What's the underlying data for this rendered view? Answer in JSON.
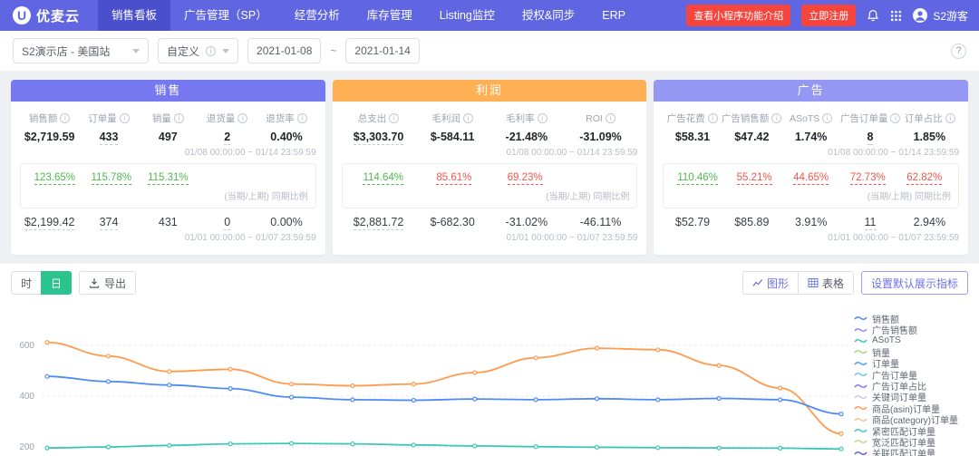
{
  "colors": {
    "topbar": "#6066e2",
    "topbar_active": "#4a50cb",
    "cta_red": "#f5453d",
    "up_green": "#4eb94c",
    "down_red": "#f25549",
    "granularity_active": "#2cc48e",
    "accent_purple": "#6a71e8"
  },
  "header": {
    "logo_text": "优麦云",
    "logo_badge": "U",
    "nav_items": [
      {
        "label": "销售看板",
        "active": true
      },
      {
        "label": "广告管理（SP）",
        "active": false
      },
      {
        "label": "经营分析",
        "active": false
      },
      {
        "label": "库存管理",
        "active": false
      },
      {
        "label": "Listing监控",
        "active": false
      },
      {
        "label": "授权&同步",
        "active": false
      },
      {
        "label": "ERP",
        "active": false
      }
    ],
    "cta_intro": "查看小程序功能介绍",
    "cta_register": "立即注册",
    "user_name": "S2游客"
  },
  "filter_bar": {
    "store": "S2演示店 - 美国站",
    "range_type": "自定义",
    "date_start": "2021-01-08",
    "date_separator": "~",
    "date_end": "2021-01-14",
    "help": "?"
  },
  "cards": [
    {
      "title": "销售",
      "accent": "#7678ef",
      "columns": [
        "销售额",
        "订单量",
        "销量",
        "退货量",
        "退货率"
      ],
      "current_values": [
        "$2,719.59",
        "433",
        "497",
        "2",
        "0.40%"
      ],
      "current_underline": [
        false,
        true,
        false,
        true,
        false
      ],
      "current_range": "01/08 00:00:00 ~ 01/14 23:59:59",
      "ratios": [
        "123.65%",
        "115.78%",
        "115.31%",
        "",
        ""
      ],
      "ratio_trends": [
        "up",
        "up",
        "up",
        "",
        ""
      ],
      "ratio_caption": "(当期/上期) 同期比例",
      "previous_values": [
        "$2,199.42",
        "374",
        "431",
        "0",
        "0.00%"
      ],
      "previous_underline": [
        true,
        true,
        false,
        true,
        false
      ],
      "previous_range": "01/01 00:00:00 ~ 01/07 23:59:59"
    },
    {
      "title": "利润",
      "accent": "#ffb055",
      "columns": [
        "总支出",
        "毛利润",
        "毛利率",
        "ROI"
      ],
      "current_values": [
        "$3,303.70",
        "$-584.11",
        "-21.48%",
        "-31.09%"
      ],
      "current_underline": [
        true,
        false,
        false,
        false
      ],
      "current_range": "01/08 00:00:00 ~ 01/14 23:59:59",
      "ratios": [
        "114.64%",
        "85.61%",
        "69.23%",
        ""
      ],
      "ratio_trends": [
        "up",
        "down",
        "down",
        ""
      ],
      "ratio_caption": "(当期/上期) 同期比例",
      "previous_values": [
        "$2,881.72",
        "$-682.30",
        "-31.02%",
        "-46.11%"
      ],
      "previous_underline": [
        true,
        false,
        false,
        false
      ],
      "previous_range": "01/01 00:00:00 ~ 01/07 23:59:59"
    },
    {
      "title": "广告",
      "accent": "#9598f3",
      "columns": [
        "广告花费",
        "广告销售额",
        "ASoTS",
        "广告订单量",
        "订单占比"
      ],
      "current_values": [
        "$58.31",
        "$47.42",
        "1.74%",
        "8",
        "1.85%"
      ],
      "current_underline": [
        false,
        false,
        false,
        true,
        false
      ],
      "current_range": "01/08 00:00:00 ~ 01/14 23:59:59",
      "ratios": [
        "110.46%",
        "55.21%",
        "44.65%",
        "72.73%",
        "62.82%"
      ],
      "ratio_trends": [
        "up",
        "down",
        "down",
        "down",
        "down"
      ],
      "ratio_caption": "(当期/上期) 同期比例",
      "previous_values": [
        "$52.79",
        "$85.89",
        "3.91%",
        "11",
        "2.94%"
      ],
      "previous_underline": [
        false,
        false,
        false,
        true,
        false
      ],
      "previous_range": "01/01 00:00:00 ~ 01/07 23:59:59"
    }
  ],
  "toolbar": {
    "granularity": [
      {
        "label": "时",
        "active": false
      },
      {
        "label": "日",
        "active": true
      }
    ],
    "export_label": "导出",
    "chart_view_label": "图形",
    "table_view_label": "表格",
    "set_metrics_label": "设置默认展示指标"
  },
  "chart_data": {
    "type": "line",
    "title": "",
    "y_ticks": [
      200,
      400,
      600
    ],
    "x_count": 14,
    "grid": true,
    "legend_position": "right",
    "series": [
      {
        "name": "商品(asin)订单量",
        "color": "#ff9a4e",
        "values": [
          612,
          558,
          497,
          506,
          448,
          441,
          448,
          493,
          551,
          589,
          583,
          521,
          432,
          252
        ]
      },
      {
        "name": "销售额",
        "color": "#4f8bf7",
        "values": [
          478,
          458,
          444,
          430,
          396,
          386,
          384,
          389,
          386,
          390,
          386,
          391,
          386,
          330
        ]
      },
      {
        "name": "ASoTS",
        "color": "#3fc6ba",
        "values": [
          196,
          200,
          206,
          212,
          214,
          212,
          208,
          204,
          201,
          199,
          197,
          196,
          195,
          192
        ]
      }
    ],
    "legend": [
      {
        "label": "销售额",
        "color": "#4f8bf7"
      },
      {
        "label": "广告销售额",
        "color": "#9b8cf5"
      },
      {
        "label": "ASoTS",
        "color": "#3fc6ba"
      },
      {
        "label": "销量",
        "color": "#a5d97e"
      },
      {
        "label": "订单量",
        "color": "#4da1ff"
      },
      {
        "label": "广告订单量",
        "color": "#74c8f0"
      },
      {
        "label": "广告订单占比",
        "color": "#8f75f0"
      },
      {
        "label": "关键词订单量",
        "color": "#c3cbf5"
      },
      {
        "label": "商品(asin)订单量",
        "color": "#ff9a4e"
      },
      {
        "label": "商品(category)订单量",
        "color": "#f2c694"
      },
      {
        "label": "紧密匹配订单量",
        "color": "#43c9cf"
      },
      {
        "label": "宽泛匹配订单量",
        "color": "#b9dd8f"
      },
      {
        "label": "关联匹配订单量",
        "color": "#5f6ad1"
      }
    ]
  }
}
